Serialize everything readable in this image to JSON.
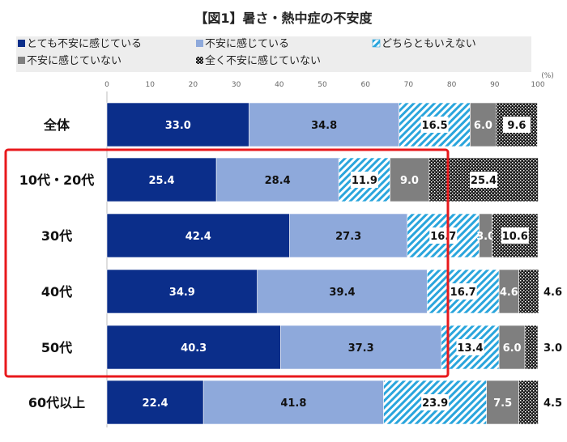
{
  "chart_data": {
    "type": "bar",
    "orientation": "horizontal",
    "stacked": true,
    "title": "【図1】暑さ・熱中症の不安度",
    "xlim": [
      0,
      100
    ],
    "x_ticks": [
      "0",
      "10",
      "20",
      "30",
      "40",
      "50",
      "60",
      "70",
      "80",
      "90",
      "100"
    ],
    "x_unit": "(%)",
    "grid": false,
    "legend_position": "top",
    "categories": [
      "全体",
      "10代・20代",
      "30代",
      "40代",
      "50代",
      "60代以上"
    ],
    "series": [
      {
        "name": "とても不安に感じている",
        "color": "#0b2e8a",
        "pattern": "solid",
        "values": [
          33.0,
          25.4,
          42.4,
          34.9,
          40.3,
          22.4
        ],
        "labels": [
          "33.0",
          "25.4",
          "42.4",
          "34.9",
          "40.3",
          "22.4"
        ]
      },
      {
        "name": "不安に感じている",
        "color": "#8ea9db",
        "pattern": "solid",
        "values": [
          34.8,
          28.4,
          27.3,
          39.4,
          37.3,
          41.8
        ],
        "labels": [
          "34.8",
          "28.4",
          "27.3",
          "39.4",
          "37.3",
          "41.8"
        ]
      },
      {
        "name": "どちらともいえない",
        "color": "#2aa5dc",
        "pattern": "hatch",
        "values": [
          16.5,
          11.9,
          16.7,
          16.7,
          13.4,
          23.9
        ],
        "labels": [
          "16.5",
          "11.9",
          "16.7",
          "16.7",
          "13.4",
          "23.9"
        ]
      },
      {
        "name": "不安に感じていない",
        "color": "#7f7f7f",
        "pattern": "solid",
        "values": [
          6.0,
          9.0,
          3.0,
          4.6,
          6.0,
          7.5
        ],
        "labels": [
          "6.0",
          "9.0",
          "3.0",
          "4.6",
          "6.0",
          "7.5"
        ]
      },
      {
        "name": "全く不安に感じていない",
        "color": "#222222",
        "pattern": "dots",
        "values": [
          9.6,
          25.4,
          10.6,
          4.6,
          3.0,
          4.5
        ],
        "labels": [
          "9.6",
          "25.4",
          "10.6",
          "4.6",
          "3.0",
          "4.5"
        ]
      }
    ],
    "highlight": {
      "categories": [
        "10代・20代",
        "30代",
        "40代",
        "50代"
      ],
      "color": "#e8191c"
    }
  }
}
